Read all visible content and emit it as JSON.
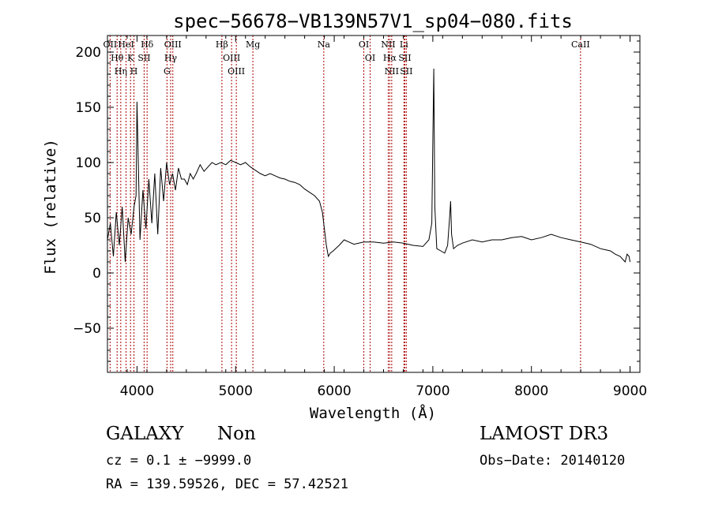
{
  "chart_data": {
    "type": "line",
    "title": "spec−56678−VB139N57V1_sp04−080.fits",
    "xlabel": "Wavelength (Å)",
    "ylabel": "Flux (relative)",
    "xlim": [
      3700,
      9100
    ],
    "ylim": [
      -90,
      215
    ],
    "x_ticks": [
      4000,
      5000,
      6000,
      7000,
      8000,
      9000
    ],
    "y_ticks": [
      -50,
      0,
      50,
      100,
      150,
      200
    ],
    "series": [
      {
        "name": "flux",
        "x": [
          3700,
          3730,
          3760,
          3790,
          3820,
          3850,
          3880,
          3910,
          3940,
          3970,
          3990,
          4000,
          4030,
          4060,
          4090,
          4120,
          4150,
          4180,
          4210,
          4240,
          4270,
          4300,
          4330,
          4360,
          4390,
          4420,
          4450,
          4480,
          4510,
          4540,
          4570,
          4600,
          4640,
          4680,
          4720,
          4760,
          4800,
          4850,
          4900,
          4950,
          5000,
          5050,
          5100,
          5150,
          5200,
          5250,
          5300,
          5350,
          5400,
          5450,
          5500,
          5550,
          5600,
          5650,
          5700,
          5750,
          5800,
          5850,
          5880,
          5900,
          5920,
          5940,
          5960,
          5990,
          6050,
          6100,
          6150,
          6200,
          6300,
          6400,
          6500,
          6600,
          6700,
          6800,
          6900,
          6960,
          6990,
          7000,
          7010,
          7020,
          7040,
          7080,
          7120,
          7150,
          7170,
          7180,
          7190,
          7210,
          7250,
          7300,
          7400,
          7500,
          7600,
          7700,
          7800,
          7900,
          8000,
          8100,
          8200,
          8300,
          8400,
          8500,
          8600,
          8700,
          8800,
          8850,
          8900,
          8950,
          8970,
          8990,
          9000
        ],
        "y": [
          30,
          45,
          15,
          55,
          25,
          60,
          10,
          50,
          35,
          60,
          70,
          155,
          30,
          75,
          40,
          85,
          45,
          90,
          35,
          95,
          65,
          100,
          80,
          90,
          75,
          95,
          85,
          85,
          80,
          90,
          85,
          90,
          98,
          92,
          96,
          100,
          98,
          100,
          98,
          102,
          100,
          98,
          100,
          96,
          93,
          90,
          88,
          90,
          88,
          86,
          85,
          83,
          82,
          80,
          76,
          73,
          70,
          65,
          55,
          40,
          25,
          15,
          18,
          20,
          25,
          30,
          28,
          26,
          28,
          28,
          27,
          28,
          27,
          25,
          24,
          30,
          45,
          120,
          185,
          60,
          22,
          20,
          18,
          25,
          50,
          65,
          35,
          22,
          25,
          27,
          30,
          28,
          30,
          30,
          32,
          33,
          30,
          32,
          35,
          32,
          30,
          28,
          26,
          22,
          20,
          17,
          15,
          10,
          17,
          15,
          10
        ]
      }
    ],
    "lines": [
      {
        "name": "OII",
        "wavelength": 3727
      },
      {
        "name": "Hθ",
        "wavelength": 3798
      },
      {
        "name": "Hη",
        "wavelength": 3835
      },
      {
        "name": "HeI",
        "wavelength": 3889
      },
      {
        "name": "K",
        "wavelength": 3934
      },
      {
        "name": "H",
        "wavelength": 3969
      },
      {
        "name": "Hδ",
        "wavelength": 4102
      },
      {
        "name": "SII",
        "wavelength": 4072
      },
      {
        "name": "OIII",
        "wavelength": 4363
      },
      {
        "name": "Hγ",
        "wavelength": 4341
      },
      {
        "name": "G",
        "wavelength": 4304
      },
      {
        "name": "Hβ",
        "wavelength": 4861
      },
      {
        "name": "OIII",
        "wavelength": 4959
      },
      {
        "name": "OIII",
        "wavelength": 5007
      },
      {
        "name": "Mg",
        "wavelength": 5175
      },
      {
        "name": "Na",
        "wavelength": 5894
      },
      {
        "name": "OI",
        "wavelength": 6300
      },
      {
        "name": "OI",
        "wavelength": 6364
      },
      {
        "name": "NII",
        "wavelength": 6548
      },
      {
        "name": "Hα",
        "wavelength": 6563
      },
      {
        "name": "NII",
        "wavelength": 6583
      },
      {
        "name": "Li",
        "wavelength": 6707
      },
      {
        "name": "SII",
        "wavelength": 6716
      },
      {
        "name": "SII",
        "wavelength": 6731
      },
      {
        "name": "CaII",
        "wavelength": 8498
      }
    ],
    "line_color": "#aa0000",
    "spectrum_color": "#000000"
  },
  "info": {
    "class": "GALAXY",
    "subclass": "Non",
    "cz_label": "cz = 0.1 ± −9999.0",
    "radec_label": "RA = 139.59526, DEC =  57.42521",
    "survey": "LAMOST DR3",
    "obs_date": "Obs−Date: 20140120"
  }
}
